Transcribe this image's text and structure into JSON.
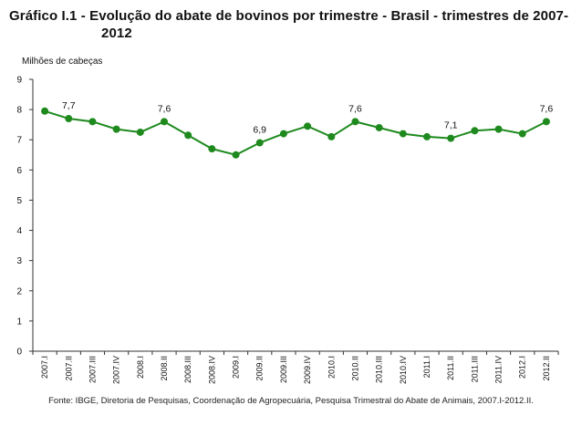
{
  "title_line1": "Gráfico I.1 - Evolução do abate de bovinos por trimestre - Brasil - trimestres de 2007-",
  "title_line2": "2012",
  "source_note": "Fonte: IBGE, Diretoria de Pesquisas, Coordenação de Agropecuária, Pesquisa Trimestral do Abate de Animais, 2007.I-2012.II.",
  "colors": {
    "series": "#1e8a1e",
    "axis": "#333333"
  },
  "chart_data": {
    "type": "line",
    "ylabel": "Milhões de cabeças",
    "xlabel": "",
    "ylim": [
      0,
      9
    ],
    "yticks": [
      "0",
      "1",
      "2",
      "3",
      "4",
      "5",
      "6",
      "7",
      "8",
      "9"
    ],
    "grid": false,
    "categories": [
      "2007.I",
      "2007.II",
      "2007.III",
      "2007.IV",
      "2008.I",
      "2008.II",
      "2008.III",
      "2008.IV",
      "2009.I",
      "2009.II",
      "2009.III",
      "2009.IV",
      "2010.I",
      "2010.II",
      "2010.III",
      "2010.IV",
      "2011.I",
      "2011.II",
      "2011.III",
      "2011.IV",
      "2012.I",
      "2012.II"
    ],
    "series": [
      {
        "values": [
          7.95,
          7.7,
          7.6,
          7.35,
          7.25,
          7.6,
          7.15,
          6.7,
          6.5,
          6.9,
          7.2,
          7.45,
          7.1,
          7.6,
          7.4,
          7.2,
          7.1,
          7.05,
          7.3,
          7.35,
          7.2,
          7.6
        ]
      }
    ],
    "data_labels": [
      {
        "index": 1,
        "text": "7,7"
      },
      {
        "index": 5,
        "text": "7,6"
      },
      {
        "index": 9,
        "text": "6,9"
      },
      {
        "index": 13,
        "text": "7,6"
      },
      {
        "index": 17,
        "text": "7,1"
      },
      {
        "index": 21,
        "text": "7,6"
      }
    ]
  }
}
